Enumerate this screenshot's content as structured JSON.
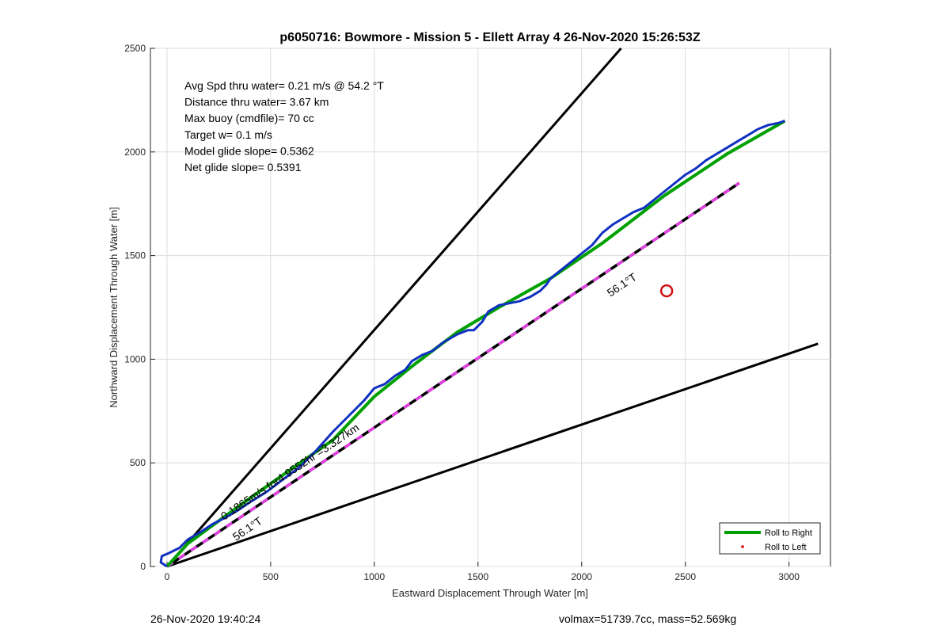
{
  "chart_data": {
    "type": "line",
    "title": "p6050716: Bowmore - Mission 5 - Ellett Array 4 26-Nov-2020 15:26:53Z",
    "xlabel": "Eastward Displacement Through Water [m]",
    "ylabel": "Northward Displacement Through Water [m]",
    "xlim": [
      -80,
      3200
    ],
    "ylim": [
      0,
      2500
    ],
    "grid": true,
    "x_ticks": [
      0,
      500,
      1000,
      1500,
      2000,
      2500,
      3000
    ],
    "y_ticks": [
      0,
      500,
      1000,
      1500,
      2000,
      2500
    ],
    "stats": [
      "Avg Spd thru water=  0.21 m/s @  54.2 °T",
      "Distance thru water=  3.67 km",
      "Max buoy (cmdfile)= 70 cc",
      "Target w= 0.1 m/s",
      "Model glide slope= 0.5362",
      "Net glide slope= 0.5391"
    ],
    "annotations": {
      "heading_upper": "56.1°T",
      "heading_lower": "56.1°T",
      "speed_label": "0.1865m/s for4.9552hr =3.327km"
    },
    "legend": {
      "position": "bottom-right",
      "entries": [
        "Roll to Right",
        "Roll to Left"
      ]
    },
    "series": [
      {
        "name": "Roll to Right",
        "color": "#00a000",
        "points": [
          [
            0,
            0
          ],
          [
            100,
            110
          ],
          [
            250,
            220
          ],
          [
            400,
            330
          ],
          [
            600,
            470
          ],
          [
            800,
            610
          ],
          [
            1000,
            820
          ],
          [
            1200,
            980
          ],
          [
            1400,
            1130
          ],
          [
            1600,
            1250
          ],
          [
            1850,
            1390
          ],
          [
            2100,
            1560
          ],
          [
            2400,
            1790
          ],
          [
            2700,
            1990
          ],
          [
            2980,
            2150
          ]
        ]
      },
      {
        "name": "Track",
        "color": "#1030c0",
        "points": [
          [
            0,
            0
          ],
          [
            -30,
            20
          ],
          [
            -25,
            50
          ],
          [
            10,
            65
          ],
          [
            60,
            90
          ],
          [
            100,
            130
          ],
          [
            160,
            165
          ],
          [
            220,
            205
          ],
          [
            280,
            235
          ],
          [
            340,
            270
          ],
          [
            400,
            310
          ],
          [
            480,
            360
          ],
          [
            560,
            420
          ],
          [
            640,
            480
          ],
          [
            720,
            560
          ],
          [
            800,
            650
          ],
          [
            880,
            730
          ],
          [
            950,
            800
          ],
          [
            1000,
            860
          ],
          [
            1050,
            880
          ],
          [
            1100,
            920
          ],
          [
            1150,
            950
          ],
          [
            1180,
            990
          ],
          [
            1230,
            1020
          ],
          [
            1280,
            1040
          ],
          [
            1330,
            1080
          ],
          [
            1400,
            1120
          ],
          [
            1450,
            1140
          ],
          [
            1480,
            1140
          ],
          [
            1520,
            1180
          ],
          [
            1550,
            1230
          ],
          [
            1600,
            1260
          ],
          [
            1650,
            1270
          ],
          [
            1700,
            1280
          ],
          [
            1750,
            1300
          ],
          [
            1800,
            1330
          ],
          [
            1830,
            1360
          ],
          [
            1850,
            1390
          ],
          [
            1900,
            1430
          ],
          [
            1950,
            1470
          ],
          [
            2000,
            1510
          ],
          [
            2050,
            1550
          ],
          [
            2100,
            1610
          ],
          [
            2150,
            1650
          ],
          [
            2200,
            1680
          ],
          [
            2250,
            1710
          ],
          [
            2300,
            1730
          ],
          [
            2350,
            1770
          ],
          [
            2400,
            1810
          ],
          [
            2450,
            1850
          ],
          [
            2500,
            1890
          ],
          [
            2550,
            1920
          ],
          [
            2600,
            1960
          ],
          [
            2650,
            1990
          ],
          [
            2700,
            2020
          ],
          [
            2750,
            2050
          ],
          [
            2800,
            2080
          ],
          [
            2850,
            2110
          ],
          [
            2900,
            2130
          ],
          [
            2950,
            2140
          ],
          [
            2980,
            2150
          ]
        ]
      },
      {
        "name": "Heading line 56.1°T",
        "color": "#000000",
        "style": "dashed-magenta",
        "points": [
          [
            0,
            0
          ],
          [
            2760,
            1850
          ]
        ]
      },
      {
        "name": "Bound upper",
        "color": "#000000",
        "points": [
          [
            0,
            0
          ],
          [
            2190,
            2500
          ]
        ]
      },
      {
        "name": "Bound lower",
        "color": "#000000",
        "points": [
          [
            0,
            0
          ],
          [
            3140,
            1075
          ]
        ]
      }
    ],
    "target_marker": {
      "x": 2410,
      "y": 1330,
      "color": "#d01010"
    }
  },
  "footer": {
    "left": "26-Nov-2020 19:40:24",
    "right": "volmax=51739.7cc, mass=52.569kg"
  }
}
